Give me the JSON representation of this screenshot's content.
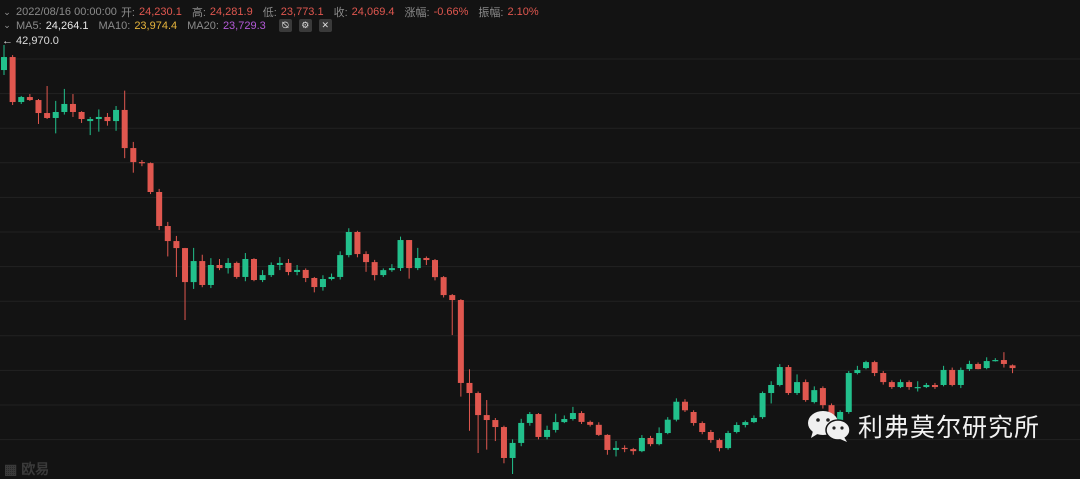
{
  "header": {
    "datetime": "2022/08/16 00:00:00",
    "open_label": "开:",
    "open": "24,230.1",
    "high_label": "高:",
    "high": "24,281.9",
    "low_label": "低:",
    "low": "23,773.1",
    "close_label": "收:",
    "close": "24,069.4",
    "change_label": "涨幅:",
    "change": "-0.66%",
    "amplitude_label": "振幅:",
    "amplitude": "2.10%"
  },
  "indicators": {
    "ma5_label": "MA5:",
    "ma5": "24,264.1",
    "ma10_label": "MA10:",
    "ma10": "23,974.4",
    "ma20_label": "MA20:",
    "ma20": "23,729.3",
    "icons": [
      "eye-hide-icon",
      "gear-icon",
      "close-icon"
    ]
  },
  "max_price_label": "← 42,970.0",
  "watermark": {
    "text": "利弗莫尔研究所",
    "icon": "wechat-icon"
  },
  "exchange_watermark": "欧易",
  "colors": {
    "up": "#22c08c",
    "down": "#e0574f",
    "background": "#131313",
    "ma10": "#e6b43c",
    "ma20": "#b45ad8"
  },
  "chart_data": {
    "type": "candlestick",
    "fields": [
      "open",
      "high",
      "low",
      "close"
    ],
    "max_marker": 42970.0,
    "grid": true,
    "candles": [
      [
        41505,
        42970,
        41213,
        42266
      ],
      [
        42266,
        42380,
        39460,
        39633
      ],
      [
        39633,
        39990,
        39520,
        39926
      ],
      [
        39926,
        40100,
        39700,
        39750
      ],
      [
        39750,
        39810,
        38350,
        38990
      ],
      [
        38990,
        40570,
        38640,
        38700
      ],
      [
        38700,
        39700,
        37800,
        39050
      ],
      [
        39050,
        40400,
        38900,
        39520
      ],
      [
        39520,
        40100,
        38760,
        39050
      ],
      [
        39050,
        39100,
        38410,
        38640
      ],
      [
        38520,
        38760,
        37700,
        38640
      ],
      [
        38640,
        39200,
        37900,
        38760
      ],
      [
        38760,
        38990,
        38250,
        38520
      ],
      [
        38520,
        39400,
        37950,
        39170
      ],
      [
        39170,
        40300,
        36350,
        36940
      ],
      [
        36940,
        37300,
        35500,
        36120
      ],
      [
        36120,
        36240,
        35880,
        36060
      ],
      [
        36060,
        36100,
        34250,
        34370
      ],
      [
        34370,
        34550,
        32150,
        32380
      ],
      [
        32380,
        32620,
        30600,
        31500
      ],
      [
        31500,
        31800,
        29400,
        31090
      ],
      [
        31090,
        31100,
        26880,
        29100
      ],
      [
        29100,
        31100,
        28700,
        30330
      ],
      [
        30330,
        30700,
        28800,
        28930
      ],
      [
        28930,
        30500,
        28750,
        30100
      ],
      [
        30100,
        30450,
        29800,
        29920
      ],
      [
        29920,
        30500,
        29600,
        30220
      ],
      [
        30220,
        30300,
        29300,
        29400
      ],
      [
        29400,
        30800,
        29150,
        30450
      ],
      [
        30450,
        30500,
        29150,
        29220
      ],
      [
        29220,
        29800,
        29100,
        29510
      ],
      [
        29510,
        30250,
        29400,
        30100
      ],
      [
        30100,
        30560,
        29800,
        30220
      ],
      [
        30220,
        30450,
        29500,
        29690
      ],
      [
        29690,
        30100,
        29500,
        29810
      ],
      [
        29810,
        29900,
        29100,
        29340
      ],
      [
        29340,
        29400,
        28500,
        28810
      ],
      [
        28810,
        29500,
        28600,
        29280
      ],
      [
        29280,
        29600,
        29200,
        29400
      ],
      [
        29400,
        30900,
        29250,
        30680
      ],
      [
        30680,
        32250,
        30550,
        32030
      ],
      [
        32030,
        32100,
        30550,
        30740
      ],
      [
        30740,
        30900,
        29700,
        30270
      ],
      [
        30270,
        30400,
        29200,
        29510
      ],
      [
        29510,
        29900,
        29400,
        29800
      ],
      [
        29800,
        30150,
        29700,
        29920
      ],
      [
        29920,
        31760,
        29750,
        31560
      ],
      [
        31560,
        31560,
        29300,
        29920
      ],
      [
        29920,
        31100,
        29800,
        30510
      ],
      [
        30510,
        30600,
        30100,
        30390
      ],
      [
        30390,
        30450,
        29200,
        29390
      ],
      [
        29390,
        29450,
        28200,
        28340
      ],
      [
        28340,
        28400,
        26000,
        28050
      ],
      [
        28050,
        28100,
        22400,
        23200
      ],
      [
        23200,
        24000,
        20400,
        22610
      ],
      [
        22610,
        22700,
        19100,
        21320
      ],
      [
        21320,
        22200,
        19300,
        21030
      ],
      [
        21030,
        21150,
        19800,
        20620
      ],
      [
        20620,
        20700,
        18500,
        18810
      ],
      [
        18810,
        19900,
        17800,
        19690
      ],
      [
        19690,
        21100,
        19500,
        20860
      ],
      [
        20860,
        21500,
        20700,
        21380
      ],
      [
        21380,
        21440,
        19900,
        20040
      ],
      [
        20040,
        20700,
        19900,
        20450
      ],
      [
        20450,
        21400,
        20300,
        20910
      ],
      [
        20910,
        21300,
        20850,
        21090
      ],
      [
        21090,
        21800,
        21000,
        21440
      ],
      [
        21440,
        21550,
        20800,
        20920
      ],
      [
        20920,
        21000,
        20650,
        20750
      ],
      [
        20750,
        20900,
        20100,
        20160
      ],
      [
        20160,
        20200,
        19000,
        19280
      ],
      [
        19280,
        19800,
        18900,
        19400
      ],
      [
        19400,
        19550,
        19150,
        19330
      ],
      [
        19330,
        19400,
        19000,
        19210
      ],
      [
        19210,
        20150,
        19150,
        19980
      ],
      [
        19980,
        20100,
        19500,
        19620
      ],
      [
        19620,
        20600,
        19550,
        20270
      ],
      [
        20270,
        21200,
        20200,
        21050
      ],
      [
        21050,
        22300,
        20950,
        22100
      ],
      [
        22100,
        22250,
        21500,
        21600
      ],
      [
        21500,
        21600,
        20700,
        20855
      ],
      [
        20855,
        20950,
        20200,
        20330
      ],
      [
        20330,
        20450,
        19700,
        19860
      ],
      [
        19860,
        19950,
        19200,
        19390
      ],
      [
        19390,
        20400,
        19300,
        20270
      ],
      [
        20330,
        20900,
        20250,
        20740
      ],
      [
        20740,
        21000,
        20600,
        20910
      ],
      [
        20910,
        21300,
        20850,
        21150
      ],
      [
        21200,
        22700,
        21100,
        22610
      ],
      [
        22610,
        23300,
        22000,
        23080
      ],
      [
        23080,
        24300,
        23000,
        24130
      ],
      [
        24130,
        24250,
        22500,
        22610
      ],
      [
        22610,
        23700,
        22500,
        23250
      ],
      [
        23250,
        23400,
        22100,
        22200
      ],
      [
        22080,
        23000,
        22000,
        22780
      ],
      [
        22900,
        23000,
        21700,
        21900
      ],
      [
        21900,
        22000,
        21000,
        21150
      ],
      [
        20860,
        21600,
        20700,
        21500
      ],
      [
        21500,
        23900,
        21400,
        23780
      ],
      [
        23780,
        24200,
        23700,
        23960
      ],
      [
        24070,
        24500,
        24000,
        24420
      ],
      [
        24420,
        24500,
        23600,
        23780
      ],
      [
        23780,
        23900,
        23100,
        23250
      ],
      [
        23250,
        23350,
        22850,
        22960
      ],
      [
        22960,
        23400,
        22900,
        23250
      ],
      [
        23250,
        23350,
        22800,
        22960
      ],
      [
        22900,
        23300,
        22700,
        22960
      ],
      [
        22960,
        23200,
        22900,
        23080
      ],
      [
        23080,
        23200,
        22850,
        22960
      ],
      [
        23080,
        24200,
        23000,
        23960
      ],
      [
        23960,
        24100,
        23000,
        23080
      ],
      [
        23080,
        24100,
        22900,
        23960
      ],
      [
        24010,
        24500,
        23900,
        24310
      ],
      [
        24310,
        24400,
        24000,
        24010
      ],
      [
        24070,
        24700,
        24000,
        24480
      ],
      [
        24480,
        24650,
        24450,
        24540
      ],
      [
        24540,
        25000,
        24100,
        24310
      ],
      [
        24230,
        24282,
        23773,
        24069
      ]
    ]
  }
}
